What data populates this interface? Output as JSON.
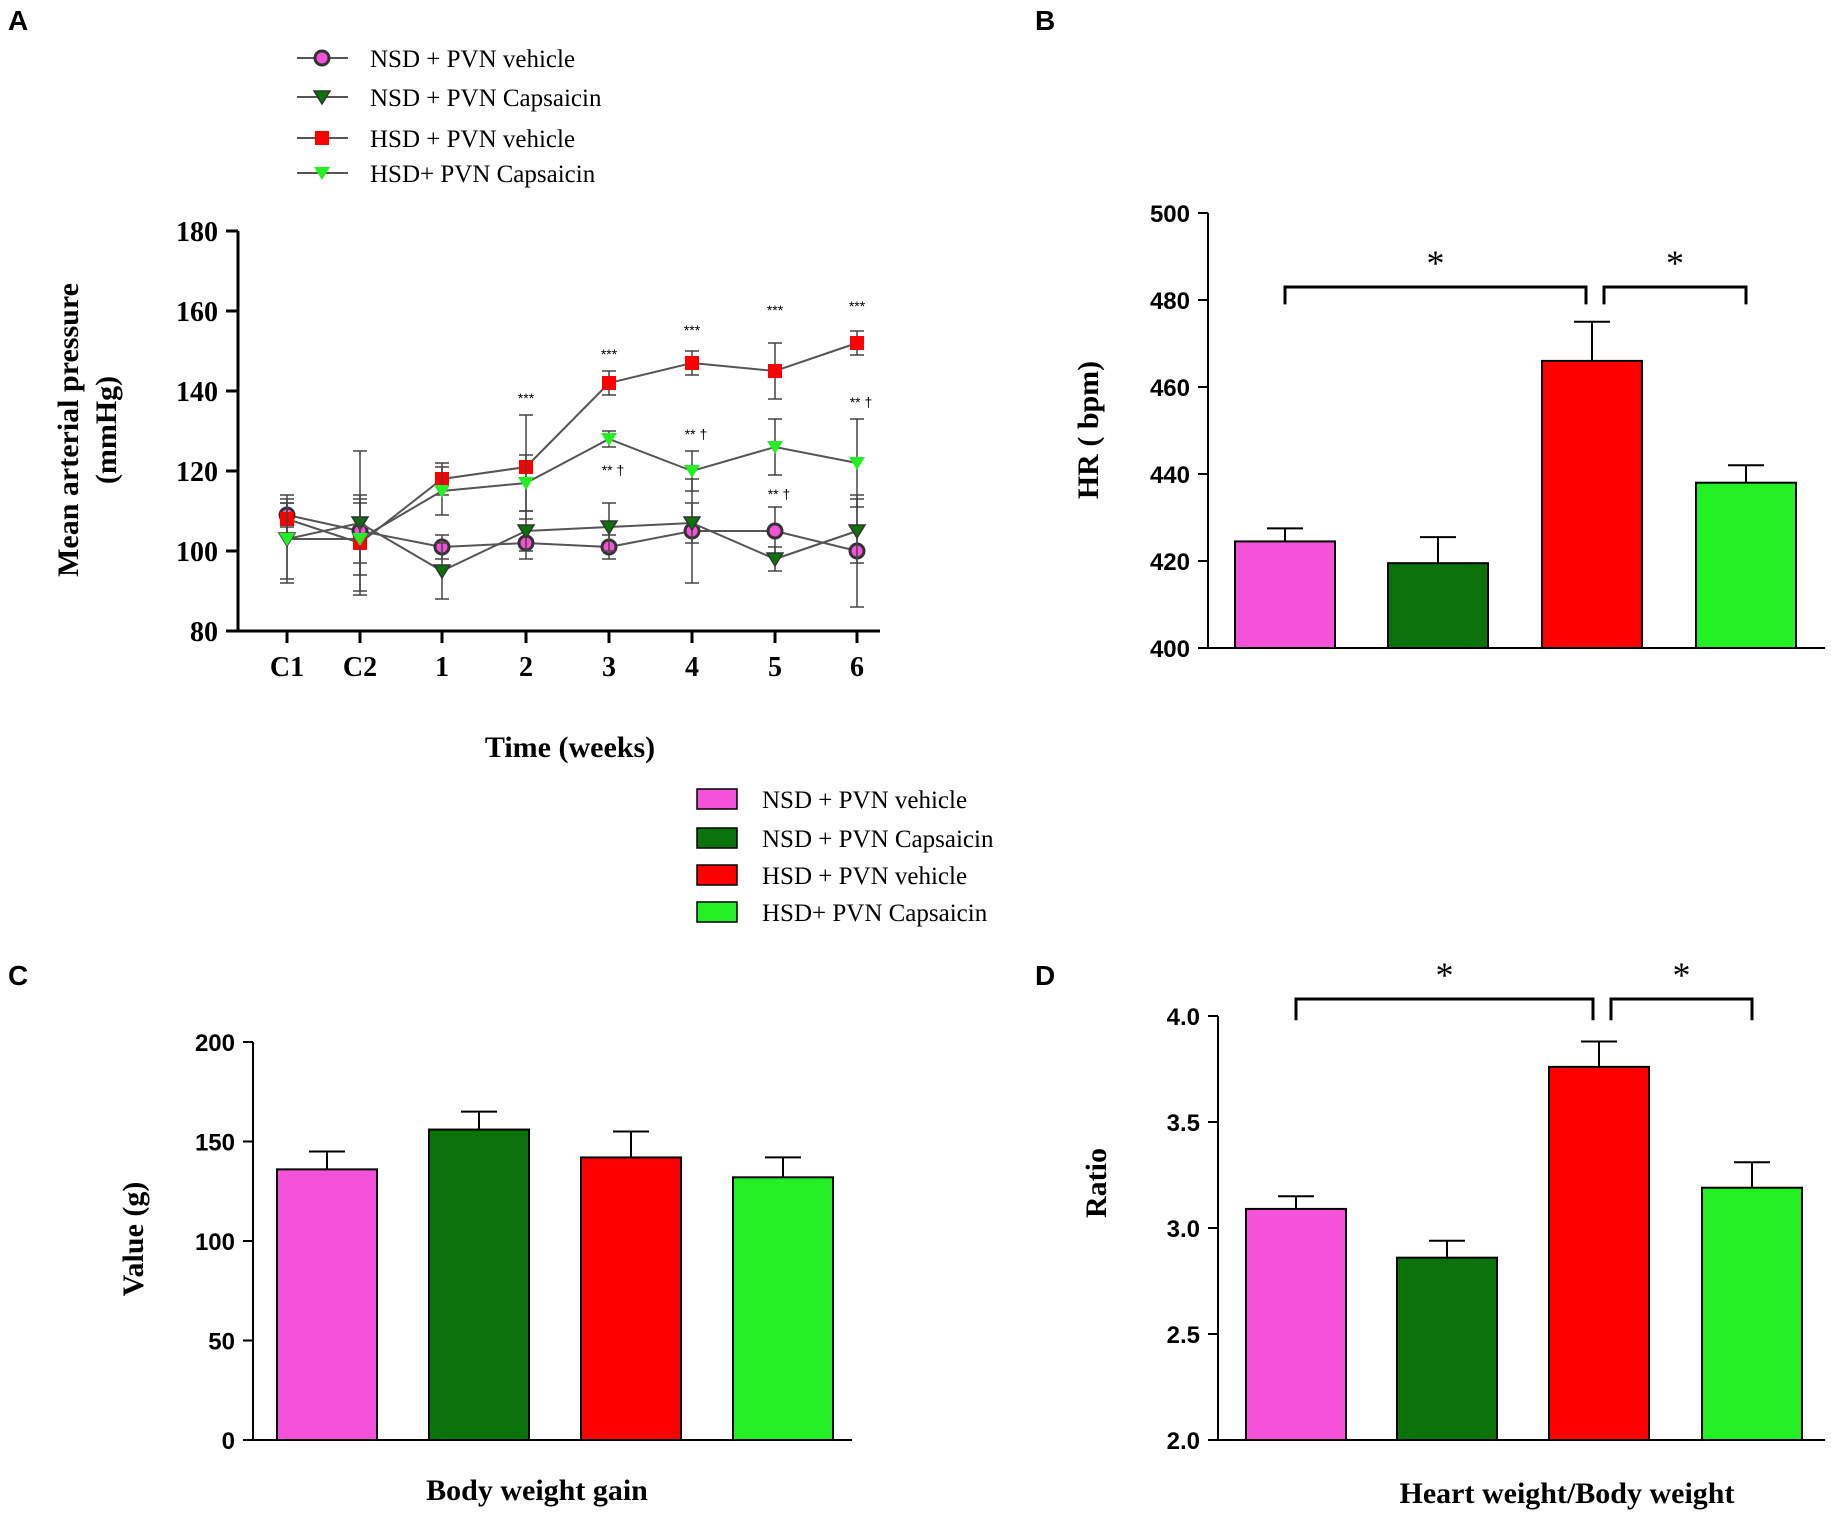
{
  "panel_labels": {
    "a": "A",
    "b": "B",
    "c": "C",
    "d": "D"
  },
  "colors": {
    "nsd_vehicle": "#f452d8",
    "nsd_capsaicin": "#0a730a",
    "hsd_vehicle": "#ff0000",
    "hsd_capsaicin": "#22f022",
    "line_gray": "#555555",
    "axis": "#000000"
  },
  "legend_a": [
    {
      "label": "NSD + PVN vehicle",
      "series": "nsd_vehicle",
      "marker": "circle"
    },
    {
      "label": "NSD + PVN Capsaicin",
      "series": "nsd_capsaicin",
      "marker": "triangle-down"
    },
    {
      "label": "HSD + PVN vehicle",
      "series": "hsd_vehicle",
      "marker": "square"
    },
    {
      "label": "HSD+  PVN Capsaicin",
      "series": "hsd_capsaicin",
      "marker": "triangle-down"
    }
  ],
  "legend_bars": [
    {
      "label": "NSD + PVN vehicle",
      "series": "nsd_vehicle"
    },
    {
      "label": "NSD + PVN Capsaicin",
      "series": "nsd_capsaicin"
    },
    {
      "label": "HSD + PVN vehicle",
      "series": "hsd_vehicle"
    },
    {
      "label": "HSD+  PVN Capsaicin",
      "series": "hsd_capsaicin"
    }
  ],
  "chart_data": [
    {
      "id": "A",
      "type": "line",
      "title": "",
      "xlabel": "Time (weeks)",
      "ylabel": "Mean arterial pressure\n(mmHg)",
      "categories": [
        "C1",
        "C2",
        "1",
        "2",
        "3",
        "4",
        "5",
        "6"
      ],
      "ylim": [
        80,
        180
      ],
      "yticks": [
        80,
        100,
        120,
        140,
        160,
        180
      ],
      "series": [
        {
          "name": "NSD + PVN vehicle",
          "key": "nsd_vehicle",
          "marker": "circle",
          "values": [
            109,
            105,
            101,
            102,
            101,
            105,
            105,
            100
          ],
          "errors": [
            3,
            8,
            3,
            4,
            3,
            13,
            6,
            14
          ]
        },
        {
          "name": "NSD + PVN Capsaicin",
          "key": "nsd_capsaicin",
          "marker": "triangle-down",
          "values": [
            103,
            107,
            95,
            105,
            106,
            107,
            98,
            105
          ],
          "errors": [
            10,
            18,
            7,
            5,
            6,
            5,
            3,
            8
          ]
        },
        {
          "name": "HSD + PVN vehicle",
          "key": "hsd_vehicle",
          "marker": "square",
          "values": [
            108,
            102,
            118,
            121,
            142,
            147,
            145,
            152
          ],
          "errors": [
            4,
            12,
            4,
            13,
            3,
            3,
            7,
            3
          ]
        },
        {
          "name": "HSD+  PVN Capsaicin",
          "key": "hsd_capsaicin",
          "marker": "triangle-down",
          "values": [
            103,
            103,
            115,
            117,
            128,
            120,
            126,
            122
          ],
          "errors": [
            11,
            9,
            6,
            7,
            2,
            5,
            7,
            11
          ]
        }
      ],
      "annotations": [
        {
          "category": "2",
          "y": 137,
          "text": "***"
        },
        {
          "category": "3",
          "y": 148,
          "text": "***"
        },
        {
          "category": "4",
          "y": 154,
          "text": "***"
        },
        {
          "category": "5",
          "y": 159,
          "text": "***"
        },
        {
          "category": "6",
          "y": 160,
          "text": "***"
        },
        {
          "category": "3",
          "y": 119,
          "text": "** †"
        },
        {
          "category": "4",
          "y": 128,
          "text": "** †"
        },
        {
          "category": "5",
          "y": 113,
          "text": "** †"
        },
        {
          "category": "6",
          "y": 136,
          "text": "** †"
        }
      ]
    },
    {
      "id": "B",
      "type": "bar",
      "title": "",
      "xlabel": "",
      "ylabel": "HR ( bpm)",
      "categories": [
        "NSD + PVN vehicle",
        "NSD + PVN Capsaicin",
        "HSD + PVN vehicle",
        "HSD+  PVN Capsaicin"
      ],
      "values": [
        424.5,
        419.5,
        466,
        438
      ],
      "errors": [
        3,
        6,
        9,
        4
      ],
      "ylim": [
        400,
        500
      ],
      "yticks": [
        400,
        420,
        440,
        460,
        480,
        500
      ],
      "brackets": [
        {
          "from": 0,
          "to": 2,
          "y": 483,
          "drop": 4,
          "label": "*"
        },
        {
          "from": 2,
          "to": 3,
          "y": 483,
          "drop": 4,
          "label": "*"
        }
      ]
    },
    {
      "id": "C",
      "type": "bar",
      "title": "",
      "xlabel": "Body weight gain",
      "ylabel": "Value (g)",
      "categories": [
        "NSD + PVN vehicle",
        "NSD + PVN Capsaicin",
        "HSD + PVN vehicle",
        "HSD+  PVN Capsaicin"
      ],
      "values": [
        136,
        156,
        142,
        132
      ],
      "errors": [
        9,
        9,
        13,
        10
      ],
      "ylim": [
        0,
        200
      ],
      "yticks": [
        0,
        50,
        100,
        150,
        200
      ],
      "brackets": []
    },
    {
      "id": "D",
      "type": "bar",
      "title": "",
      "xlabel": "Heart weight/Body weight",
      "ylabel": "Ratio",
      "categories": [
        "NSD + PVN vehicle",
        "NSD + PVN Capsaicin",
        "HSD + PVN vehicle",
        "HSD+  PVN Capsaicin"
      ],
      "values": [
        3.09,
        2.86,
        3.76,
        3.19
      ],
      "errors": [
        0.06,
        0.08,
        0.12,
        0.12
      ],
      "ylim": [
        2.0,
        4.0
      ],
      "yticks": [
        "2.0",
        "2.5",
        "3.0",
        "3.5",
        "4.0"
      ],
      "brackets": [
        {
          "from": 0,
          "to": 2,
          "y": 4.08,
          "drop": 0.1,
          "label": "*"
        },
        {
          "from": 2,
          "to": 3,
          "y": 4.08,
          "drop": 0.1,
          "label": "*"
        }
      ]
    }
  ]
}
